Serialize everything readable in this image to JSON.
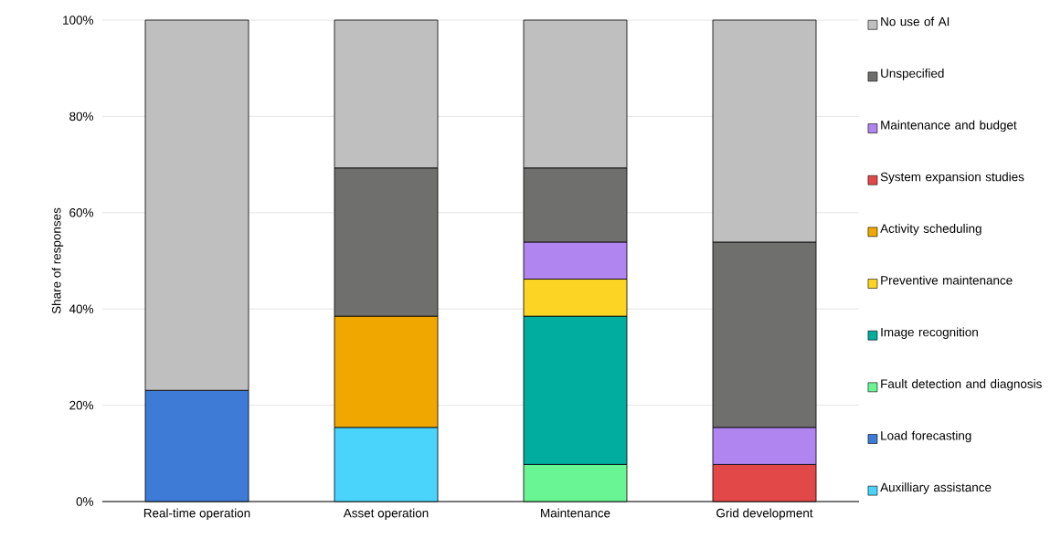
{
  "chart_data": {
    "type": "bar",
    "stacked": true,
    "ylabel": "Share of responses",
    "categories": [
      "Real-time operation",
      "Asset operation",
      "Maintenance",
      "Grid development"
    ],
    "ylim": [
      0,
      100
    ],
    "yticks": [
      {
        "value": 0,
        "label": "0%"
      },
      {
        "value": 20,
        "label": "20%"
      },
      {
        "value": 40,
        "label": "40%"
      },
      {
        "value": 60,
        "label": "60%"
      },
      {
        "value": 80,
        "label": "80%"
      },
      {
        "value": 100,
        "label": "100%"
      }
    ],
    "grid": "y",
    "legend": "right",
    "series": [
      {
        "name": "Auxilliary assistance",
        "color": "#4ad4fc",
        "values": [
          null,
          15.4,
          null,
          null
        ]
      },
      {
        "name": "Load forecasting",
        "color": "#3d7bd6",
        "values": [
          23.1,
          null,
          null,
          null
        ]
      },
      {
        "name": "Fault detection and diagnosis",
        "color": "#6af594",
        "values": [
          null,
          null,
          7.7,
          null
        ]
      },
      {
        "name": "Image recognition",
        "color": "#00ad9f",
        "values": [
          null,
          null,
          30.8,
          null
        ]
      },
      {
        "name": "Preventive maintenance",
        "color": "#fcd423",
        "values": [
          null,
          null,
          7.7,
          null
        ]
      },
      {
        "name": "Activity scheduling",
        "color": "#f0a800",
        "values": [
          null,
          23.1,
          null,
          null
        ]
      },
      {
        "name": "System expansion studies",
        "color": "#e34848",
        "values": [
          null,
          null,
          null,
          7.7
        ]
      },
      {
        "name": "Maintenance and budget",
        "color": "#b085f0",
        "values": [
          null,
          null,
          7.7,
          7.7
        ]
      },
      {
        "name": "Unspecified",
        "color": "#6f706e",
        "values": [
          null,
          30.8,
          15.4,
          38.5
        ]
      },
      {
        "name": "No use of AI",
        "color": "#bfbfbf",
        "values": [
          76.9,
          30.7,
          30.7,
          46.1
        ]
      }
    ]
  }
}
